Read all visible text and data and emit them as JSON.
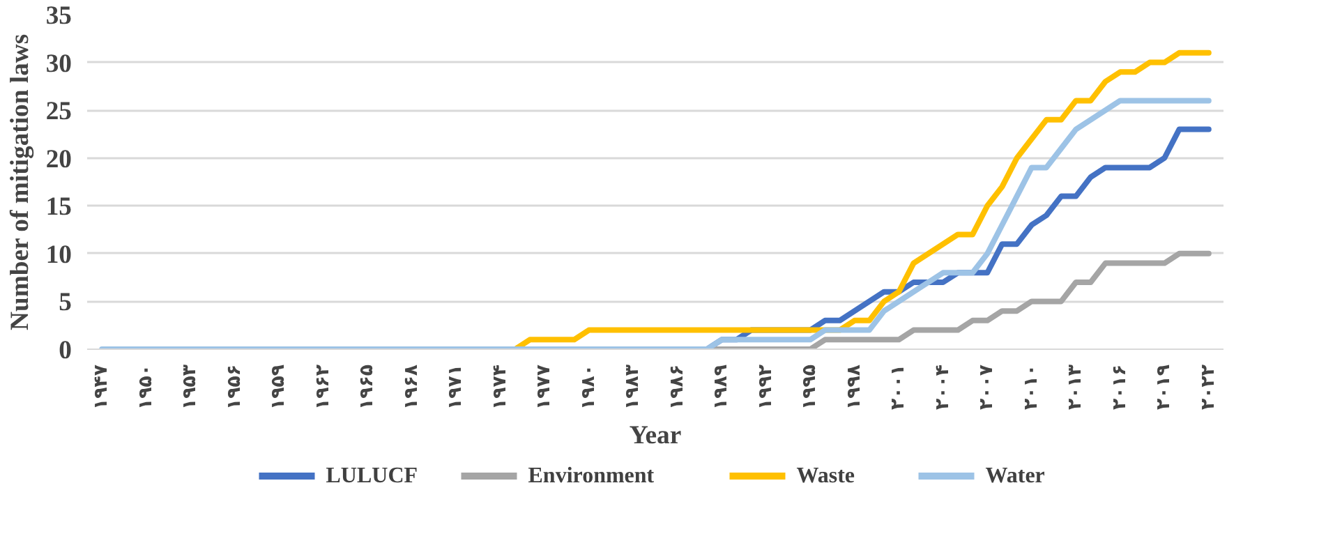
{
  "chart_data": {
    "type": "line",
    "xlabel": "Year",
    "ylabel": "Number of mitigation laws",
    "x": [
      1947,
      1948,
      1949,
      1950,
      1951,
      1952,
      1953,
      1954,
      1955,
      1956,
      1957,
      1958,
      1959,
      1960,
      1961,
      1962,
      1963,
      1964,
      1965,
      1966,
      1967,
      1968,
      1969,
      1970,
      1971,
      1972,
      1973,
      1974,
      1975,
      1976,
      1977,
      1978,
      1979,
      1980,
      1981,
      1982,
      1983,
      1984,
      1985,
      1986,
      1987,
      1988,
      1989,
      1990,
      1991,
      1992,
      1993,
      1994,
      1995,
      1996,
      1997,
      1998,
      1999,
      2000,
      2001,
      2002,
      2003,
      2004,
      2005,
      2006,
      2007,
      2008,
      2009,
      2010,
      2011,
      2012,
      2013,
      2014,
      2015,
      2016,
      2017,
      2018,
      2019,
      2020,
      2021,
      2022
    ],
    "series": [
      {
        "name": "LULUCF",
        "color": "#4472c4",
        "values": [
          null,
          null,
          null,
          null,
          null,
          null,
          null,
          null,
          null,
          null,
          null,
          null,
          null,
          null,
          null,
          null,
          null,
          null,
          null,
          null,
          null,
          null,
          null,
          null,
          null,
          null,
          null,
          null,
          null,
          null,
          null,
          null,
          null,
          null,
          null,
          null,
          null,
          null,
          null,
          null,
          null,
          0,
          1,
          1,
          2,
          2,
          2,
          2,
          2,
          3,
          3,
          4,
          5,
          6,
          6,
          7,
          7,
          7,
          8,
          8,
          8,
          11,
          11,
          13,
          14,
          16,
          16,
          18,
          19,
          19,
          19,
          19,
          20,
          23,
          23,
          23
        ]
      },
      {
        "name": "Environment",
        "color": "#a5a5a5",
        "values": [
          null,
          null,
          null,
          null,
          null,
          null,
          null,
          null,
          null,
          null,
          null,
          null,
          null,
          null,
          null,
          null,
          null,
          null,
          null,
          null,
          null,
          null,
          null,
          null,
          null,
          null,
          null,
          null,
          null,
          null,
          null,
          null,
          null,
          null,
          null,
          null,
          null,
          null,
          null,
          null,
          null,
          0,
          0,
          0,
          0,
          0,
          0,
          0,
          0,
          1,
          1,
          1,
          1,
          1,
          1,
          2,
          2,
          2,
          2,
          3,
          3,
          4,
          4,
          5,
          5,
          5,
          7,
          7,
          9,
          9,
          9,
          9,
          9,
          10,
          10,
          10
        ]
      },
      {
        "name": "Waste",
        "color": "#ffc000",
        "values": [
          null,
          null,
          null,
          null,
          null,
          null,
          null,
          null,
          null,
          null,
          null,
          null,
          null,
          null,
          null,
          null,
          null,
          null,
          null,
          null,
          null,
          null,
          null,
          null,
          null,
          null,
          null,
          null,
          0,
          1,
          1,
          1,
          1,
          2,
          2,
          2,
          2,
          2,
          2,
          2,
          2,
          2,
          2,
          2,
          2,
          2,
          2,
          2,
          2,
          2,
          2,
          3,
          3,
          5,
          6,
          9,
          10,
          11,
          12,
          12,
          15,
          17,
          20,
          22,
          24,
          24,
          26,
          26,
          28,
          29,
          29,
          30,
          30,
          31,
          31,
          31
        ]
      },
      {
        "name": "Water",
        "color": "#9dc3e6",
        "values": [
          0,
          0,
          0,
          0,
          0,
          0,
          0,
          0,
          0,
          0,
          0,
          0,
          0,
          0,
          0,
          0,
          0,
          0,
          0,
          0,
          0,
          0,
          0,
          0,
          0,
          0,
          0,
          0,
          0,
          0,
          0,
          0,
          0,
          0,
          0,
          0,
          0,
          0,
          0,
          0,
          0,
          0,
          1,
          1,
          1,
          1,
          1,
          1,
          1,
          2,
          2,
          2,
          2,
          4,
          5,
          6,
          7,
          8,
          8,
          8,
          10,
          13,
          16,
          19,
          19,
          21,
          23,
          24,
          25,
          26,
          26,
          26,
          26,
          26,
          26,
          26
        ]
      }
    ],
    "xlim": [
      1946,
      2023
    ],
    "xticks": [
      {
        "value": 1947,
        "label": "۱۹۴۷"
      },
      {
        "value": 1950,
        "label": "۱۹۵۰"
      },
      {
        "value": 1953,
        "label": "۱۹۵۳"
      },
      {
        "value": 1956,
        "label": "۱۹۵۶"
      },
      {
        "value": 1959,
        "label": "۱۹۵۹"
      },
      {
        "value": 1962,
        "label": "۱۹۶۲"
      },
      {
        "value": 1965,
        "label": "۱۹۶۵"
      },
      {
        "value": 1968,
        "label": "۱۹۶۸"
      },
      {
        "value": 1971,
        "label": "۱۹۷۱"
      },
      {
        "value": 1974,
        "label": "۱۹۷۴"
      },
      {
        "value": 1977,
        "label": "۱۹۷۷"
      },
      {
        "value": 1980,
        "label": "۱۹۸۰"
      },
      {
        "value": 1983,
        "label": "۱۹۸۳"
      },
      {
        "value": 1986,
        "label": "۱۹۸۶"
      },
      {
        "value": 1989,
        "label": "۱۹۸۹"
      },
      {
        "value": 1992,
        "label": "۱۹۹۲"
      },
      {
        "value": 1995,
        "label": "۱۹۹۵"
      },
      {
        "value": 1998,
        "label": "۱۹۹۸"
      },
      {
        "value": 2001,
        "label": "۲۰۰۱"
      },
      {
        "value": 2004,
        "label": "۲۰۰۴"
      },
      {
        "value": 2007,
        "label": "۲۰۰۷"
      },
      {
        "value": 2010,
        "label": "۲۰۱۰"
      },
      {
        "value": 2013,
        "label": "۲۰۱۳"
      },
      {
        "value": 2016,
        "label": "۲۰۱۶"
      },
      {
        "value": 2019,
        "label": "۲۰۱۹"
      },
      {
        "value": 2022,
        "label": "۲۰۲۲"
      }
    ],
    "ylim": [
      0,
      35
    ],
    "yticks": [
      0,
      5,
      10,
      15,
      20,
      25,
      30,
      35
    ],
    "grid": "y",
    "legend": "bottom",
    "marker": "none",
    "line_style": "solid"
  }
}
